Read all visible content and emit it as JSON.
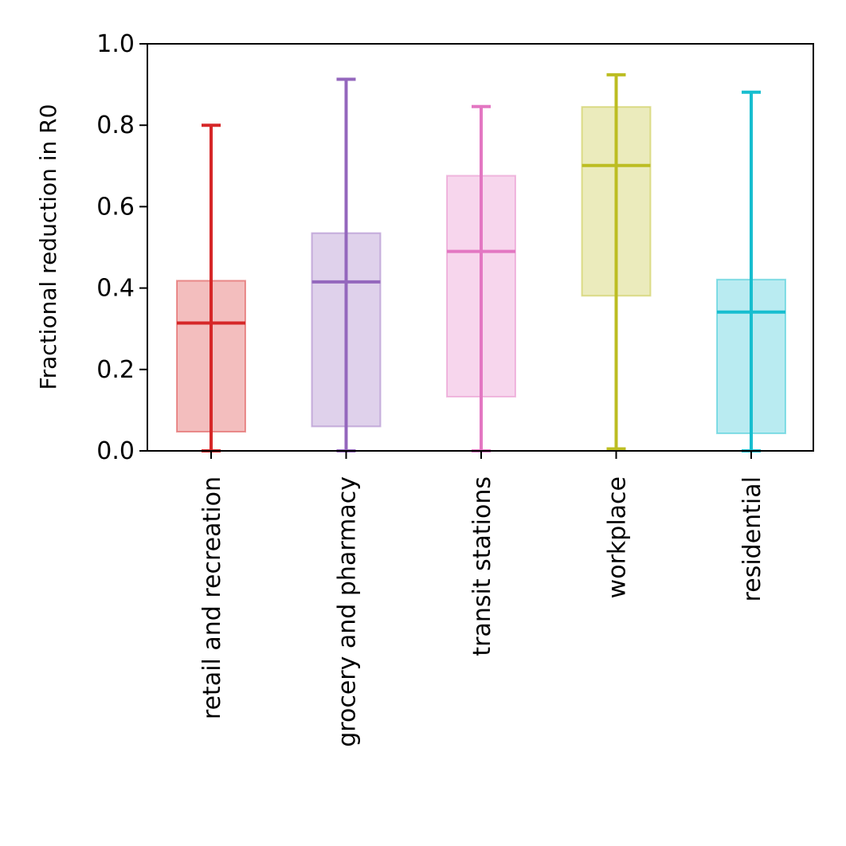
{
  "chart_data": {
    "type": "box",
    "title": "",
    "xlabel": "",
    "ylabel": "Fractional reduction in R0",
    "ylim": [
      0,
      1.0
    ],
    "yticks": [
      "0.0",
      "0.2",
      "0.4",
      "0.6",
      "0.8",
      "1.0"
    ],
    "grid": false,
    "categories": [
      "retail and recreation",
      "grocery and pharmacy",
      "transit stations",
      "workplace",
      "residential"
    ],
    "boxes": [
      {
        "category": "retail and recreation",
        "min": 0.0,
        "q1": 0.047,
        "median": 0.314,
        "q3": 0.418,
        "max": 0.8,
        "color": "#d62728"
      },
      {
        "category": "grocery and pharmacy",
        "min": 0.0,
        "q1": 0.06,
        "median": 0.415,
        "q3": 0.535,
        "max": 0.913,
        "color": "#9467bd"
      },
      {
        "category": "transit stations",
        "min": 0.0,
        "q1": 0.133,
        "median": 0.49,
        "q3": 0.676,
        "max": 0.846,
        "color": "#e377c2"
      },
      {
        "category": "workplace",
        "min": 0.005,
        "q1": 0.381,
        "median": 0.701,
        "q3": 0.845,
        "max": 0.924,
        "color": "#bcbd22"
      },
      {
        "category": "residential",
        "min": 0.0,
        "q1": 0.043,
        "median": 0.341,
        "q3": 0.421,
        "max": 0.881,
        "color": "#17becf"
      }
    ]
  }
}
